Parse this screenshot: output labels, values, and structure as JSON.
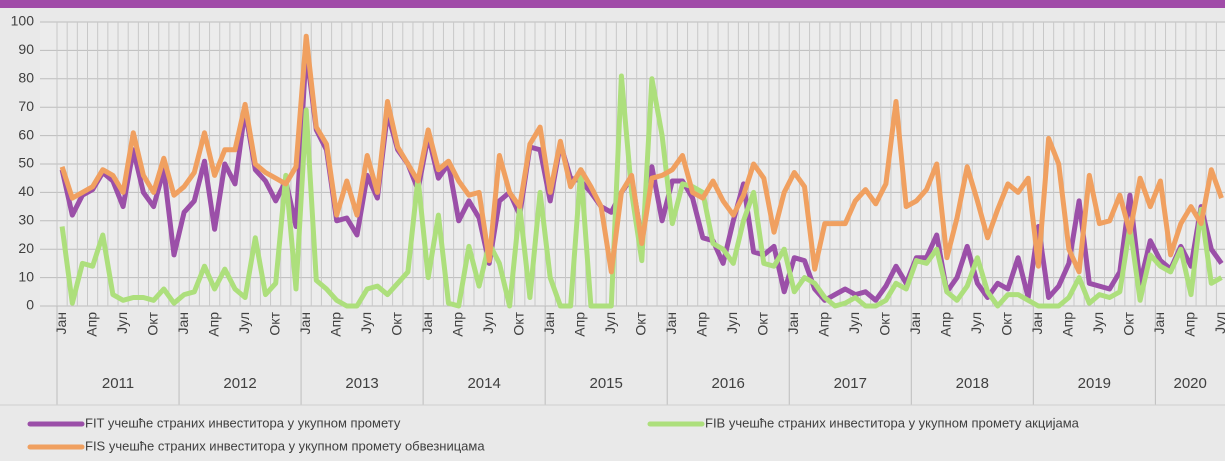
{
  "chart_data": {
    "type": "line",
    "categories": [
      "Јан",
      null,
      null,
      "Апр",
      null,
      null,
      "Јул",
      null,
      null,
      "Окт",
      null,
      null,
      "Јан",
      null,
      null,
      "Апр",
      null,
      null,
      "Јул",
      null,
      null,
      "Окт",
      null,
      null,
      "Јан",
      null,
      null,
      "Апр",
      null,
      null,
      "Јул",
      null,
      null,
      "Окт",
      null,
      null,
      "Јан",
      null,
      null,
      "Апр",
      null,
      null,
      "Јул",
      null,
      null,
      "Окт",
      null,
      null,
      "Јан",
      null,
      null,
      "Апр",
      null,
      null,
      "Јул",
      null,
      null,
      "Окт",
      null,
      null,
      "Јан",
      null,
      null,
      "Апр",
      null,
      null,
      "Јул",
      null,
      null,
      "Окт",
      null,
      null,
      "Јан",
      null,
      null,
      "Апр",
      null,
      null,
      "Јул",
      null,
      null,
      "Окт",
      null,
      null,
      "Јан",
      null,
      null,
      "Апр",
      null,
      null,
      "Јул",
      null,
      null,
      "Окт",
      null,
      null,
      "Јан",
      null,
      null,
      "Апр",
      null,
      null,
      "Јул",
      null,
      null,
      "Окт",
      null,
      null,
      "Јан",
      null,
      null,
      "Апр",
      null,
      null,
      "Јул"
    ],
    "years": [
      "2011",
      "2012",
      "2013",
      "2014",
      "2015",
      "2016",
      "2017",
      "2018",
      "2019",
      "2020"
    ],
    "ylim": [
      0,
      100
    ],
    "yticks": [
      0,
      10,
      20,
      30,
      40,
      50,
      60,
      70,
      80,
      90,
      100
    ],
    "grid": true,
    "legend": "bottom",
    "series": [
      {
        "name": "FIT учешће страних инвеститора у укупном промету",
        "color": "#9b4fa8",
        "values": [
          48,
          32,
          39,
          41,
          47,
          44,
          35,
          55,
          40,
          35,
          48,
          18,
          33,
          37,
          51,
          27,
          50,
          43,
          69,
          48,
          44,
          37,
          44,
          28,
          90,
          62,
          55,
          30,
          31,
          25,
          46,
          38,
          68,
          55,
          50,
          41,
          60,
          45,
          50,
          30,
          37,
          31,
          15,
          37,
          40,
          32,
          56,
          55,
          37,
          57,
          45,
          44,
          40,
          35,
          33,
          40,
          45,
          23,
          49,
          30,
          44,
          44,
          38,
          24,
          23,
          15,
          30,
          43,
          19,
          18,
          21,
          5,
          17,
          16,
          6,
          2,
          4,
          6,
          4,
          5,
          2,
          7,
          14,
          8,
          17,
          17,
          25,
          5,
          10,
          21,
          8,
          3,
          8,
          6,
          17,
          3,
          28,
          3,
          7,
          15,
          37,
          8,
          7,
          6,
          12,
          39,
          8,
          23,
          16,
          13,
          21,
          14,
          35,
          20,
          15
        ]
      },
      {
        "name": "FIB учешће страних инвеститора у укупном промету акцијама",
        "color": "#addf7c",
        "values": [
          28,
          1,
          15,
          14,
          25,
          4,
          2,
          3,
          3,
          2,
          6,
          1,
          4,
          5,
          14,
          6,
          13,
          6,
          3,
          24,
          4,
          8,
          46,
          6,
          69,
          9,
          6,
          2,
          0,
          0,
          6,
          7,
          4,
          8,
          12,
          45,
          10,
          32,
          1,
          0,
          21,
          7,
          22,
          15,
          0,
          35,
          3,
          40,
          10,
          0,
          0,
          48,
          0,
          0,
          0,
          81,
          40,
          16,
          80,
          60,
          29,
          43,
          42,
          40,
          22,
          20,
          15,
          30,
          40,
          15,
          14,
          20,
          5,
          10,
          8,
          3,
          0,
          1,
          3,
          0,
          0,
          2,
          8,
          6,
          16,
          15,
          20,
          5,
          2,
          7,
          17,
          5,
          0,
          4,
          4,
          2,
          0,
          0,
          0,
          3,
          10,
          1,
          4,
          3,
          5,
          28,
          2,
          18,
          14,
          12,
          20,
          4,
          34,
          8,
          10
        ]
      },
      {
        "name": "FIS учешће страних инвеститора у укупном промету обвезницама",
        "color": "#f0a060",
        "values": [
          49,
          38,
          40,
          42,
          48,
          46,
          40,
          61,
          46,
          40,
          52,
          39,
          42,
          47,
          61,
          46,
          55,
          55,
          71,
          50,
          47,
          45,
          43,
          49,
          95,
          63,
          57,
          32,
          44,
          32,
          53,
          40,
          72,
          56,
          50,
          44,
          62,
          48,
          51,
          44,
          39,
          40,
          16,
          53,
          40,
          35,
          57,
          63,
          40,
          58,
          42,
          48,
          42,
          35,
          12,
          40,
          46,
          22,
          45,
          46,
          48,
          53,
          40,
          38,
          44,
          37,
          32,
          39,
          50,
          45,
          26,
          40,
          47,
          42,
          13,
          29,
          29,
          29,
          37,
          41,
          36,
          43,
          72,
          35,
          37,
          41,
          50,
          17,
          31,
          49,
          37,
          24,
          34,
          43,
          40,
          45,
          14,
          59,
          50,
          20,
          12,
          46,
          29,
          30,
          39,
          26,
          45,
          35,
          44,
          18,
          29,
          35,
          29,
          48,
          38
        ]
      }
    ]
  }
}
